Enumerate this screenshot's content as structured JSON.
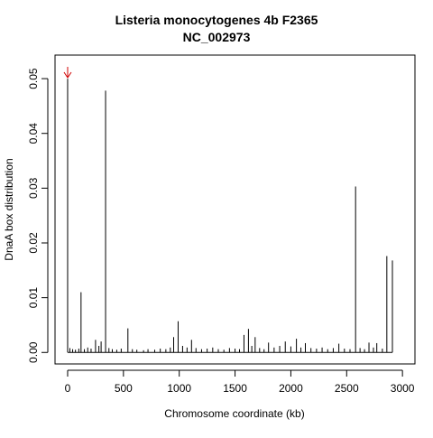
{
  "chart_data": {
    "type": "spike",
    "title": "Listeria monocytogenes 4b F2365",
    "subtitle": "NC_002973",
    "xlabel": "Chromosome coordinate (kb)",
    "ylabel": "DnaA box distribution",
    "color": "#000000",
    "xlim": [
      -113,
      3112
    ],
    "ylim": [
      -0.0021,
      0.0543
    ],
    "xticks": [
      0,
      500,
      1000,
      1500,
      2000,
      2500,
      3000
    ],
    "yticks": [
      {
        "value": 0,
        "label": "0.00"
      },
      {
        "value": 0.01,
        "label": "0.01"
      },
      {
        "value": 0.02,
        "label": "0.02"
      },
      {
        "value": 0.03,
        "label": "0.03"
      },
      {
        "value": 0.04,
        "label": "0.04"
      },
      {
        "value": 0.05,
        "label": "0.05"
      }
    ],
    "x": [
      0,
      20,
      45,
      70,
      100,
      120,
      150,
      180,
      210,
      250,
      280,
      300,
      340,
      370,
      400,
      440,
      480,
      540,
      580,
      620,
      680,
      720,
      780,
      830,
      880,
      920,
      950,
      990,
      1030,
      1070,
      1110,
      1150,
      1200,
      1250,
      1300,
      1350,
      1400,
      1450,
      1500,
      1540,
      1580,
      1620,
      1650,
      1680,
      1720,
      1760,
      1800,
      1850,
      1900,
      1950,
      2000,
      2050,
      2090,
      2130,
      2180,
      2230,
      2280,
      2330,
      2380,
      2430,
      2480,
      2530,
      2580,
      2620,
      2660,
      2700,
      2740,
      2770,
      2820,
      2860,
      2910
    ],
    "values": [
      0.05,
      0.0008,
      0.0006,
      0.0005,
      0.0007,
      0.011,
      0.0006,
      0.0009,
      0.0007,
      0.0023,
      0.0012,
      0.002,
      0.0478,
      0.0008,
      0.0006,
      0.0005,
      0.0007,
      0.0044,
      0.0006,
      0.0005,
      0.0004,
      0.0006,
      0.0005,
      0.0007,
      0.0006,
      0.0009,
      0.0028,
      0.0057,
      0.0012,
      0.0009,
      0.0023,
      0.0008,
      0.0006,
      0.0007,
      0.0009,
      0.0006,
      0.0005,
      0.0008,
      0.0007,
      0.0006,
      0.0032,
      0.0043,
      0.0012,
      0.0028,
      0.0008,
      0.0006,
      0.0018,
      0.0009,
      0.0012,
      0.002,
      0.0011,
      0.0025,
      0.0009,
      0.0017,
      0.0008,
      0.0007,
      0.0009,
      0.0006,
      0.0008,
      0.0016,
      0.0007,
      0.0006,
      0.0303,
      0.0008,
      0.0006,
      0.0018,
      0.0009,
      0.0017,
      0.0007,
      0.0176,
      0.0168
    ]
  }
}
